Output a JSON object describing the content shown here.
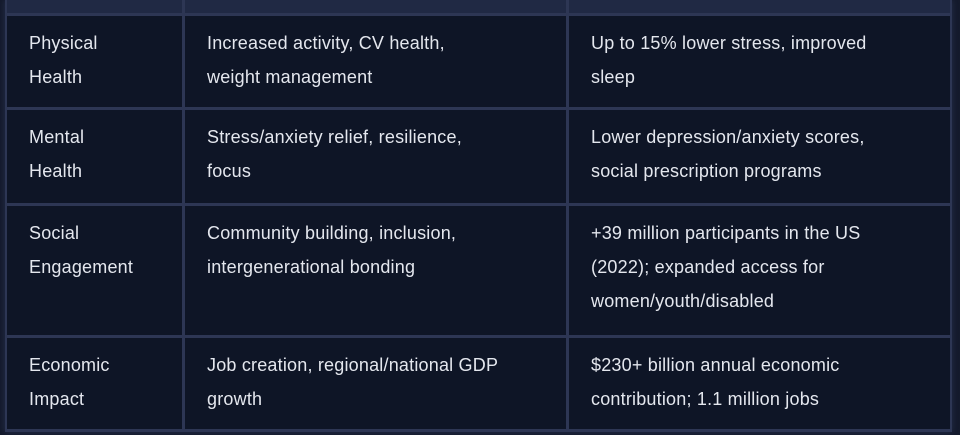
{
  "page": {
    "background": "#141a2c"
  },
  "table": {
    "colors": {
      "border": "#2d3654",
      "header_bg": "#202944",
      "cell_bg": "#0e1526",
      "text": "#e4e7ee",
      "page_bg": "#141a2c"
    },
    "columns_count": 3,
    "header_visible_text": [
      "",
      "",
      ""
    ],
    "rows": [
      {
        "aspect": [
          "Physical",
          "Health"
        ],
        "details": [
          "Increased activity, CV health,",
          "weight management"
        ],
        "evidence": [
          "Up to 15% lower stress, improved",
          "sleep"
        ]
      },
      {
        "aspect": [
          "Mental",
          "Health"
        ],
        "details": [
          "Stress/anxiety relief, resilience,",
          "focus"
        ],
        "evidence": [
          "Lower depression/anxiety scores,",
          "social prescription programs"
        ]
      },
      {
        "aspect": [
          "Social",
          "Engagement"
        ],
        "details": [
          "Community building, inclusion,",
          "intergenerational bonding"
        ],
        "evidence": [
          "+39 million participants in the US",
          "(2022); expanded access for",
          "women/youth/disabled"
        ]
      },
      {
        "aspect": [
          "Economic",
          "Impact"
        ],
        "details": [
          "Job creation, regional/national GDP",
          "growth"
        ],
        "evidence": [
          "$230+ billion annual economic",
          "contribution; 1.1 million jobs"
        ]
      }
    ]
  }
}
